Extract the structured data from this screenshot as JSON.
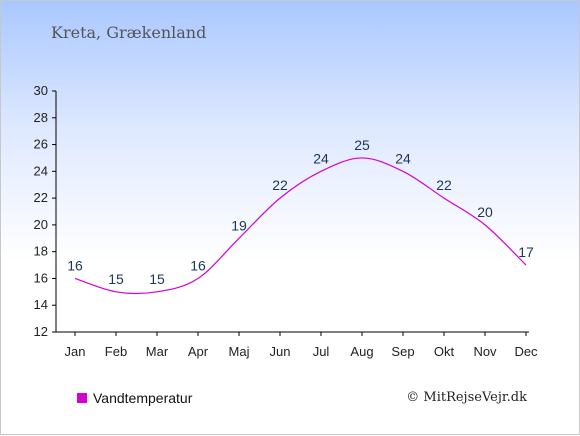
{
  "title": "Kreta, Grækenland",
  "credit": "© MitRejseVejr.dk",
  "legend": {
    "label": "Vandtemperatur",
    "color": "#d400d4"
  },
  "chart_data": {
    "type": "line",
    "categories": [
      "Jan",
      "Feb",
      "Mar",
      "Apr",
      "Maj",
      "Jun",
      "Jul",
      "Aug",
      "Sep",
      "Okt",
      "Nov",
      "Dec"
    ],
    "series": [
      {
        "name": "Vandtemperatur",
        "values": [
          16,
          15,
          15,
          16,
          19,
          22,
          24,
          25,
          24,
          22,
          20,
          17
        ],
        "color": "#d400d4"
      }
    ],
    "ylim": [
      12,
      30
    ],
    "yticks": [
      12,
      14,
      16,
      18,
      20,
      22,
      24,
      26,
      28,
      30
    ],
    "xlabel": "",
    "ylabel": "",
    "grid": false,
    "data_labels": true,
    "legend_position": "bottom-left"
  }
}
